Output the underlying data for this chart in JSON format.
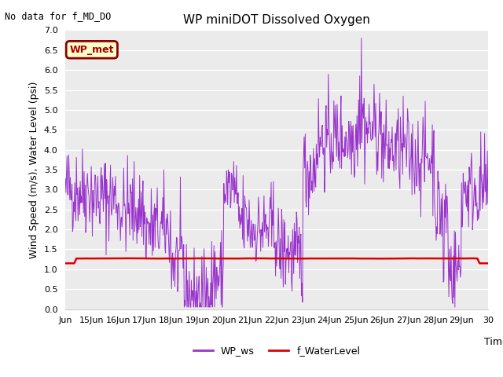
{
  "title": "WP miniDOT Dissolved Oxygen",
  "ylabel": "Wind Speed (m/s), Water Level (psi)",
  "xlabel": "Time",
  "top_left_text": "No data for f_MD_DO",
  "legend_box_text": "WP_met",
  "legend_box_bg": "#ffffcc",
  "legend_box_edge": "#8b0000",
  "wp_ws_color": "#9933cc",
  "f_wl_color": "#dd0000",
  "ylim": [
    0.0,
    7.0
  ],
  "yticks": [
    0.0,
    0.5,
    1.0,
    1.5,
    2.0,
    2.5,
    3.0,
    3.5,
    4.0,
    4.5,
    5.0,
    5.5,
    6.0,
    6.5,
    7.0
  ],
  "plot_bg": "#ebebeb",
  "fig_bg": "#ffffff",
  "legend_ws_label": "WP_ws",
  "legend_wl_label": "f_WaterLevel",
  "title_fontsize": 11,
  "axis_label_fontsize": 9,
  "tick_fontsize": 8
}
